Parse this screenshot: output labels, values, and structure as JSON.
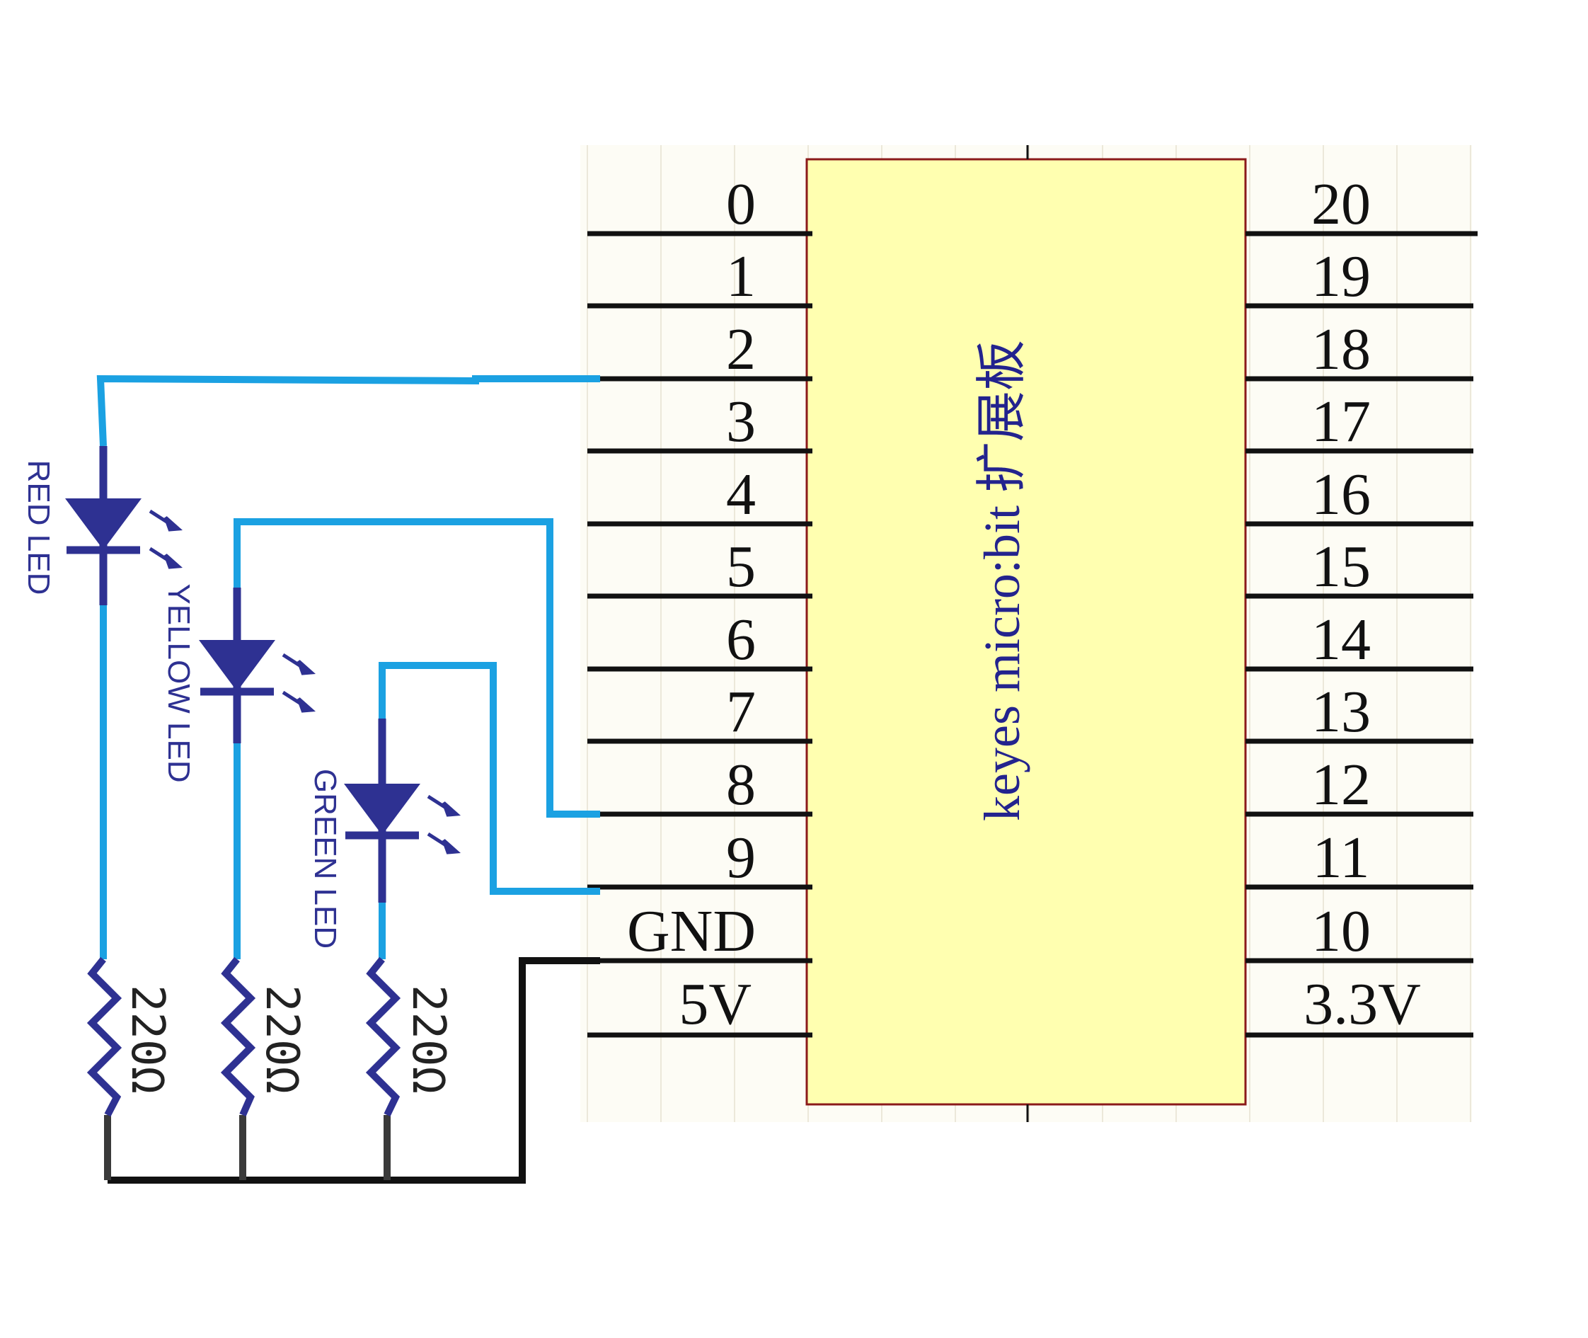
{
  "chip": {
    "title": "keyes micro:bit 扩展板",
    "left_pins": [
      "0",
      "1",
      "2",
      "3",
      "4",
      "5",
      "6",
      "7",
      "8",
      "9",
      "GND",
      "5V"
    ],
    "right_pins": [
      "20",
      "19",
      "18",
      "17",
      "16",
      "15",
      "14",
      "13",
      "12",
      "11",
      "10",
      "3.3V"
    ]
  },
  "leds": [
    {
      "label": "RED LED",
      "pin": "2"
    },
    {
      "label": "YELLOW LED",
      "pin": "8"
    },
    {
      "label": "GREEN LED",
      "pin": "9"
    }
  ],
  "resistors": [
    {
      "label": "220Ω"
    },
    {
      "label": "220Ω"
    },
    {
      "label": "220Ω"
    }
  ],
  "colors": {
    "signal_wire": "#1ba1e2",
    "ground_wire": "#111111",
    "component": "#2e3192",
    "chip_fill": "#ffffb0",
    "chip_border": "#8b1a1a",
    "pin_line": "#111111",
    "grid_bg": "#fdfcf5"
  }
}
